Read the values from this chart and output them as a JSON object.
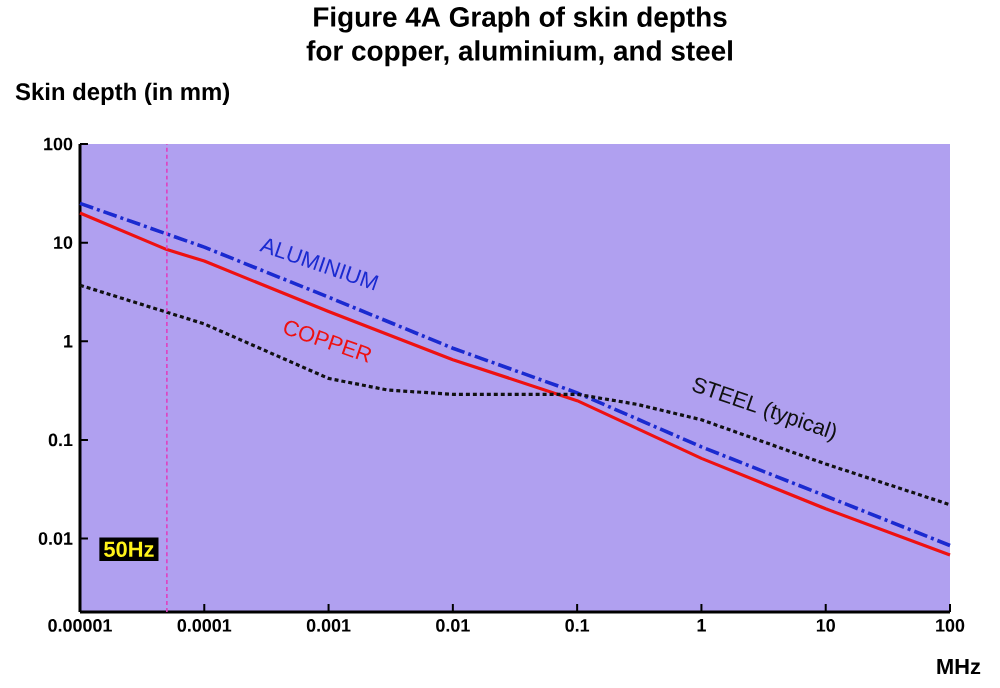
{
  "chart_data": {
    "type": "line",
    "title": "Figure 4A   Graph of skin depths\nfor copper, aluminium, and steel",
    "ylabel": "Skin depth (in mm)",
    "xlabel": "MHz",
    "log": "xy",
    "xlim": [
      1e-05,
      100
    ],
    "ylim": [
      0.0018,
      100
    ],
    "xticks": [
      {
        "value": 1e-05,
        "label": "0.00001"
      },
      {
        "value": 0.0001,
        "label": "0.0001"
      },
      {
        "value": 0.001,
        "label": "0.001"
      },
      {
        "value": 0.01,
        "label": "0.01"
      },
      {
        "value": 0.1,
        "label": "0.1"
      },
      {
        "value": 1,
        "label": "1"
      },
      {
        "value": 10,
        "label": "10"
      },
      {
        "value": 100,
        "label": "100"
      }
    ],
    "yticks": [
      {
        "value": 0.01,
        "label": "0.01"
      },
      {
        "value": 0.1,
        "label": "0.1"
      },
      {
        "value": 1,
        "label": "1"
      },
      {
        "value": 10,
        "label": "10"
      },
      {
        "value": 100,
        "label": "100"
      }
    ],
    "grid": false,
    "series": [
      {
        "name": "ALUMINIUM",
        "color": "#1a2ad0",
        "line_style": "dashed",
        "x": [
          1e-05,
          0.0001,
          0.001,
          0.01,
          0.1,
          1,
          10,
          100
        ],
        "values": [
          25,
          9,
          2.8,
          0.85,
          0.3,
          0.085,
          0.027,
          0.0085
        ]
      },
      {
        "name": "COPPER",
        "color": "#ee1111",
        "line_style": "solid",
        "x": [
          1e-05,
          5e-05,
          0.0001,
          0.001,
          0.01,
          0.1,
          1,
          10,
          100
        ],
        "values": [
          20,
          8.5,
          6.5,
          2,
          0.65,
          0.25,
          0.065,
          0.02,
          0.0068
        ]
      },
      {
        "name": "STEEL (typical)",
        "color": "#111111",
        "line_style": "dotted",
        "x": [
          1e-05,
          0.0001,
          0.001,
          0.003,
          0.01,
          0.1,
          0.3,
          1,
          10,
          100
        ],
        "values": [
          3.7,
          1.5,
          0.42,
          0.32,
          0.29,
          0.29,
          0.23,
          0.16,
          0.057,
          0.022
        ]
      }
    ],
    "ref_lines": [
      {
        "axis": "x",
        "value": 5e-05,
        "label": "50Hz",
        "color": "#e040c0",
        "line_style": "dotted"
      }
    ]
  }
}
